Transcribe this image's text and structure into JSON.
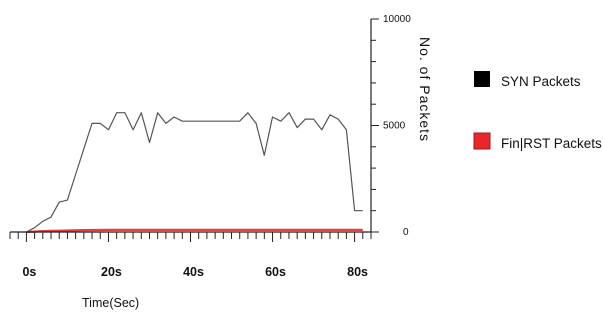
{
  "chart_data": {
    "type": "line",
    "xlabel": "Time(Sec)",
    "ylabel": "No. of Packets",
    "xlim": [
      -4,
      84
    ],
    "ylim": [
      0,
      10000
    ],
    "x_ticks": [
      {
        "value": 0,
        "label": "0s"
      },
      {
        "value": 20,
        "label": "20s"
      },
      {
        "value": 40,
        "label": "40s"
      },
      {
        "value": 60,
        "label": "60s"
      },
      {
        "value": 80,
        "label": "80s"
      }
    ],
    "y_ticks": [
      {
        "value": 0,
        "label": "0"
      },
      {
        "value": 5000,
        "label": "5000"
      },
      {
        "value": 10000,
        "label": "10000"
      }
    ],
    "series": [
      {
        "name": "SYN Packets",
        "color": "#555555",
        "legend_color": "#000000",
        "x": [
          0,
          2,
          4,
          6,
          8,
          10,
          12,
          14,
          16,
          18,
          20,
          22,
          24,
          26,
          28,
          30,
          32,
          34,
          36,
          38,
          40,
          42,
          44,
          46,
          48,
          50,
          52,
          54,
          56,
          58,
          60,
          62,
          64,
          66,
          68,
          70,
          72,
          74,
          76,
          78,
          80,
          82
        ],
        "y": [
          0,
          200,
          500,
          700,
          1400,
          1500,
          2700,
          3900,
          5100,
          5100,
          4800,
          5600,
          5600,
          4800,
          5600,
          4200,
          5600,
          5100,
          5400,
          5200,
          5200,
          5200,
          5200,
          5200,
          5200,
          5200,
          5200,
          5600,
          5100,
          3600,
          5400,
          5200,
          5600,
          4900,
          5300,
          5300,
          4800,
          5500,
          5300,
          4800,
          1000,
          1000
        ]
      },
      {
        "name": "Fin|RST Packets",
        "color": "#e04040",
        "legend_color": "#e8262d",
        "x": [
          0,
          2,
          4,
          6,
          8,
          10,
          14,
          20,
          30,
          40,
          50,
          60,
          70,
          80,
          82
        ],
        "y": [
          0,
          20,
          40,
          50,
          60,
          70,
          90,
          100,
          100,
          100,
          100,
          100,
          100,
          100,
          100
        ]
      }
    ]
  }
}
